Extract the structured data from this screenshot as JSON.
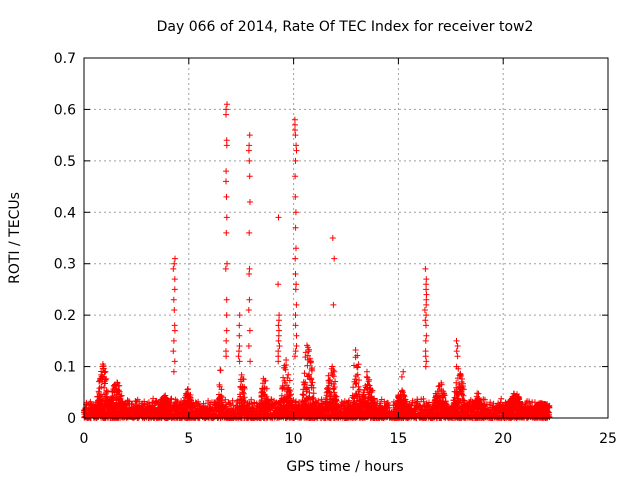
{
  "chart_data": {
    "type": "scatter",
    "title": "Day 066 of 2014, Rate Of TEC Index for receiver tow2",
    "xlabel": "GPS time / hours",
    "ylabel": "ROTI / TECUs",
    "xlim": [
      0,
      25
    ],
    "ylim": [
      0,
      0.7
    ],
    "xticks": [
      0,
      5,
      10,
      15,
      20,
      25
    ],
    "xtick_labels": [
      "0",
      "5",
      "10",
      "15",
      "20",
      "25"
    ],
    "yticks": [
      0,
      0.1,
      0.2,
      0.3,
      0.4,
      0.5,
      0.6,
      0.7
    ],
    "ytick_labels": [
      "0",
      "0.1",
      "0.2",
      "0.3",
      "0.4",
      "0.5",
      "0.6",
      "0.7"
    ],
    "grid": true,
    "marker": "+",
    "marker_color": "#ff0000",
    "series": [
      {
        "name": "ROTI",
        "baseline": {
          "x_start": 0.0,
          "x_end": 22.2,
          "y_min": 0.0,
          "y_max": 0.03
        },
        "bumps": [
          {
            "x_start": 0.6,
            "x_end": 1.2,
            "peak": 0.11
          },
          {
            "x_start": 1.2,
            "x_end": 1.9,
            "peak": 0.07
          },
          {
            "x_start": 3.6,
            "x_end": 4.1,
            "peak": 0.05
          },
          {
            "x_start": 4.7,
            "x_end": 5.2,
            "peak": 0.06
          },
          {
            "x_start": 6.4,
            "x_end": 6.6,
            "peak": 0.1
          },
          {
            "x_start": 7.4,
            "x_end": 7.7,
            "peak": 0.1
          },
          {
            "x_start": 8.4,
            "x_end": 8.8,
            "peak": 0.08
          },
          {
            "x_start": 9.4,
            "x_end": 9.9,
            "peak": 0.12
          },
          {
            "x_start": 10.4,
            "x_end": 11.0,
            "peak": 0.15
          },
          {
            "x_start": 11.5,
            "x_end": 12.1,
            "peak": 0.11
          },
          {
            "x_start": 12.8,
            "x_end": 13.2,
            "peak": 0.15
          },
          {
            "x_start": 13.2,
            "x_end": 13.9,
            "peak": 0.08
          },
          {
            "x_start": 14.9,
            "x_end": 15.4,
            "peak": 0.06
          },
          {
            "x_start": 16.7,
            "x_end": 17.3,
            "peak": 0.08
          },
          {
            "x_start": 17.6,
            "x_end": 18.2,
            "peak": 0.1
          },
          {
            "x_start": 18.6,
            "x_end": 19.0,
            "peak": 0.05
          },
          {
            "x_start": 20.2,
            "x_end": 20.9,
            "peak": 0.05
          },
          {
            "x_start": 21.5,
            "x_end": 22.2,
            "peak": 0.03
          }
        ],
        "columns": [
          {
            "x": 4.3,
            "y": [
              0.31,
              0.3,
              0.29,
              0.27,
              0.25,
              0.23,
              0.21,
              0.18,
              0.17,
              0.15,
              0.13,
              0.11,
              0.09
            ]
          },
          {
            "x": 6.8,
            "y": [
              0.61,
              0.6,
              0.59,
              0.54,
              0.53,
              0.48,
              0.46,
              0.43,
              0.39,
              0.36,
              0.3,
              0.29,
              0.23,
              0.2,
              0.17,
              0.15,
              0.13,
              0.12
            ]
          },
          {
            "x": 7.9,
            "y": [
              0.55,
              0.53,
              0.52,
              0.5,
              0.47,
              0.42,
              0.36,
              0.29,
              0.28,
              0.23,
              0.21,
              0.17,
              0.14,
              0.11
            ]
          },
          {
            "x": 9.3,
            "y": [
              0.39,
              0.26,
              0.2,
              0.19,
              0.18,
              0.17,
              0.16,
              0.15,
              0.14,
              0.13,
              0.12,
              0.11
            ]
          },
          {
            "x": 10.1,
            "y": [
              0.58,
              0.57,
              0.56,
              0.55,
              0.53,
              0.52,
              0.5,
              0.47,
              0.43,
              0.4,
              0.37,
              0.33,
              0.31,
              0.28,
              0.26,
              0.25,
              0.22,
              0.2,
              0.18,
              0.16,
              0.14,
              0.13,
              0.12
            ]
          },
          {
            "x": 11.9,
            "y": [
              0.35,
              0.31,
              0.22
            ]
          },
          {
            "x": 16.3,
            "y": [
              0.29,
              0.27,
              0.26,
              0.25,
              0.24,
              0.23,
              0.22,
              0.21,
              0.2,
              0.19,
              0.18,
              0.16,
              0.15,
              0.13,
              0.12,
              0.11,
              0.1
            ]
          },
          {
            "x": 7.4,
            "y": [
              0.2,
              0.18,
              0.16,
              0.14,
              0.13,
              0.12,
              0.11
            ]
          },
          {
            "x": 13.5,
            "y": [
              0.09,
              0.08
            ]
          },
          {
            "x": 15.2,
            "y": [
              0.09,
              0.08
            ]
          },
          {
            "x": 17.8,
            "y": [
              0.15,
              0.14,
              0.13,
              0.12,
              0.1
            ]
          }
        ]
      }
    ]
  }
}
